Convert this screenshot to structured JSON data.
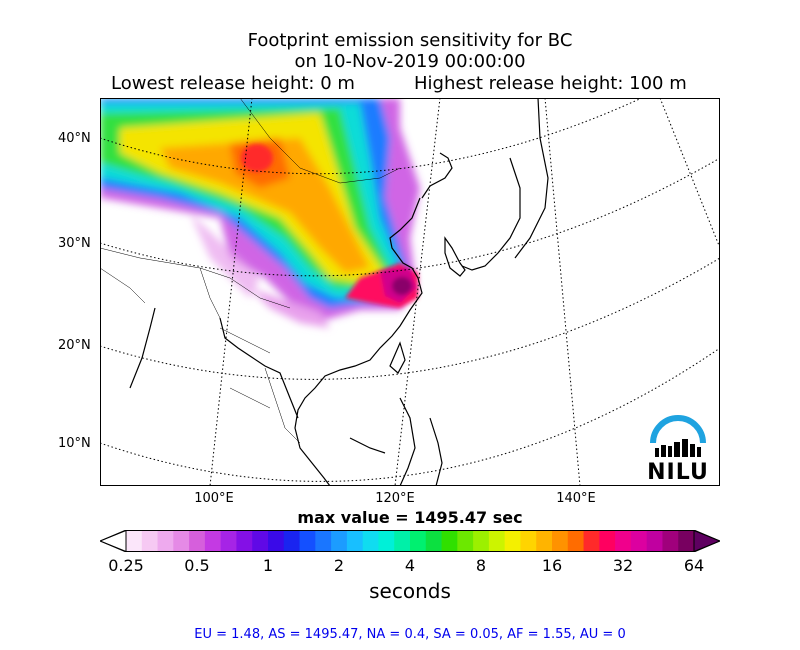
{
  "title": {
    "line1": "Footprint emission sensitivity for BC",
    "line2": "on 10-Nov-2019 00:00:00",
    "lowest_release": "Lowest release height: 0 m",
    "highest_release": "Highest release height: 100 m"
  },
  "map": {
    "lat_labels": [
      "40°N",
      "30°N",
      "20°N",
      "10°N"
    ],
    "lon_labels": [
      "100°E",
      "120°E",
      "140°E"
    ],
    "max_value": "max value = 1495.47 sec"
  },
  "colorbar": {
    "ticks": [
      "0.25",
      "0.5",
      "1",
      "2",
      "4",
      "8",
      "16",
      "32",
      "64"
    ],
    "unit": "seconds",
    "colors": [
      "#fbe6fa",
      "#f6c9f3",
      "#eeaaee",
      "#e58ae6",
      "#d65fdc",
      "#c43ae3",
      "#a624e6",
      "#8410e6",
      "#6009e6",
      "#3a0ae8",
      "#1a24f0",
      "#1450ff",
      "#1a76ff",
      "#1c9cff",
      "#18bfff",
      "#10dcf0",
      "#00f0d8",
      "#00f0a8",
      "#00f070",
      "#0ce040",
      "#30e000",
      "#6ce800",
      "#9cf000",
      "#ccf400",
      "#f4f000",
      "#ffd400",
      "#ffb400",
      "#ff9200",
      "#ff6c00",
      "#ff2a2a",
      "#ff0060",
      "#f0008c",
      "#dc00a0",
      "#c000a0",
      "#a0007c",
      "#780060"
    ],
    "low_extend_color": "#ffffff",
    "high_extend_color": "#5e0060"
  },
  "footer": "EU = 1.48,  AS = 1495.47,  NA = 0.4,  SA = 0.05,  AF = 1.55,  AU = 0",
  "logo": {
    "text": "NILU",
    "arc_color": "#1fa3e0"
  }
}
